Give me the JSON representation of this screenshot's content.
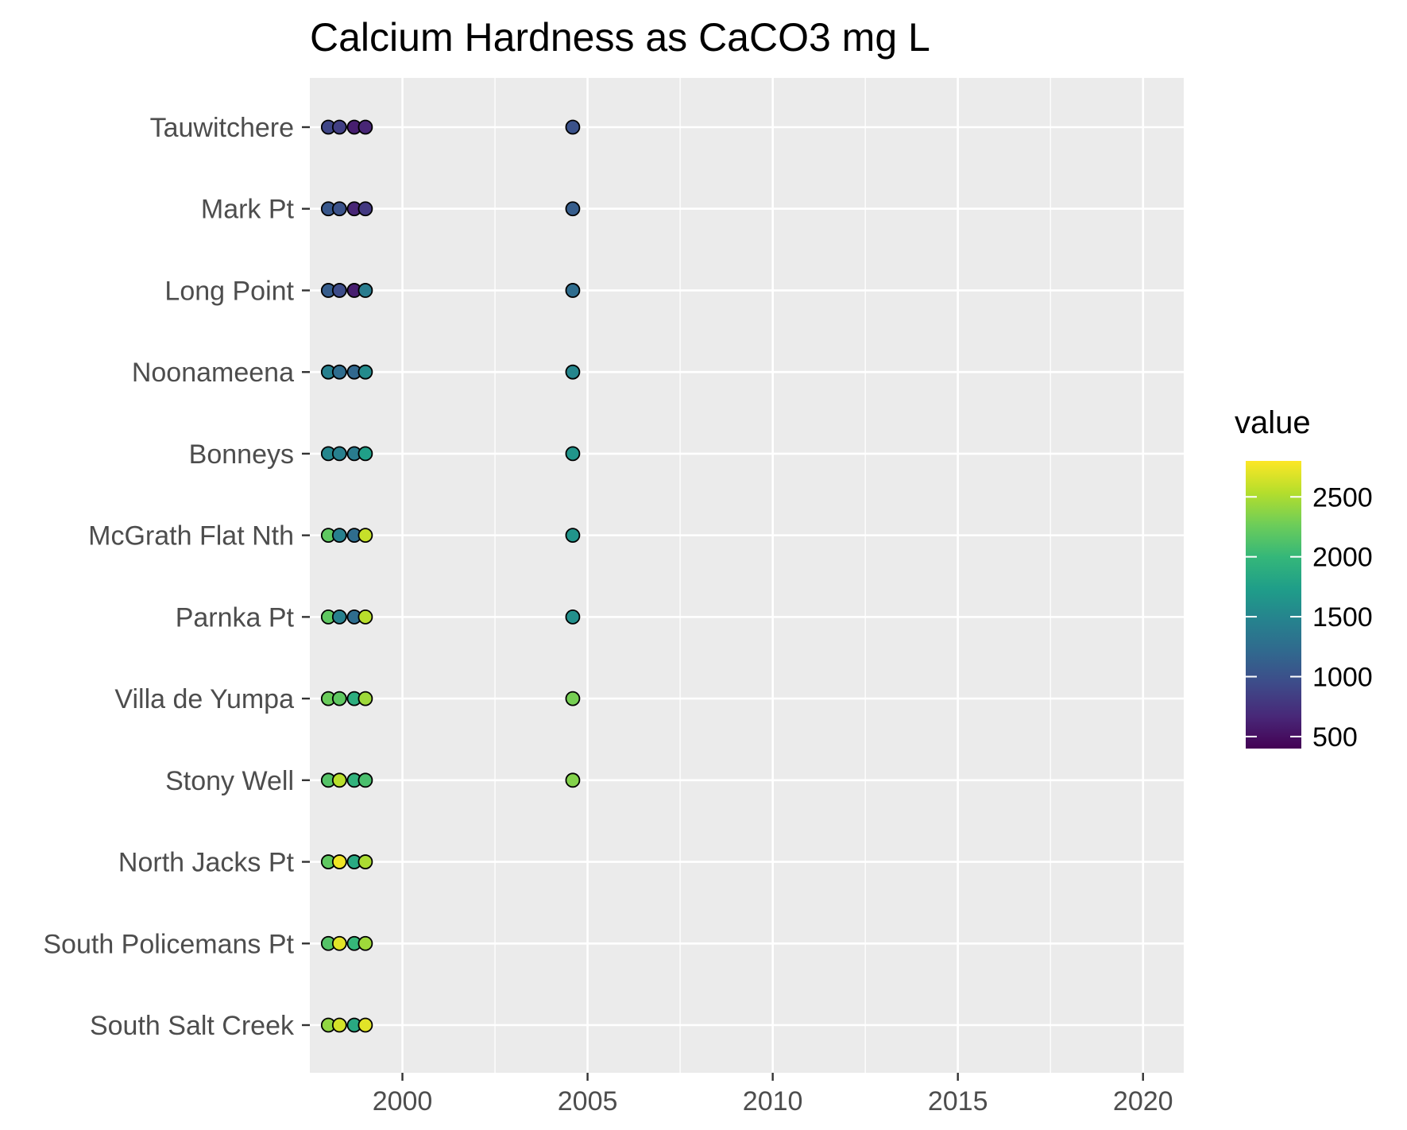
{
  "chart_data": {
    "type": "scatter",
    "title": "Calcium Hardness as CaCO3 mg L",
    "xlabel": "",
    "ylabel": "",
    "x_ticks": [
      2000,
      2005,
      2010,
      2015,
      2020
    ],
    "x_ticks_text": [
      "2000",
      "2005",
      "2010",
      "2015",
      "2020"
    ],
    "xlim": [
      1997.5,
      2021.1
    ],
    "categories": [
      "Tauwitchere",
      "Mark Pt",
      "Long Point",
      "Noonameena",
      "Bonneys",
      "McGrath Flat Nth",
      "Parnka Pt",
      "Villa de Yumpa",
      "Stony Well",
      "North Jacks Pt",
      "South Policemans Pt",
      "South Salt Creek"
    ],
    "grid": true,
    "legend": {
      "title": "value",
      "placement": "right",
      "type": "colorbar",
      "palette": "viridis",
      "range": [
        400,
        2800
      ],
      "ticks": [
        500,
        1000,
        1500,
        2000,
        2500
      ],
      "ticks_text": [
        "500",
        "1000",
        "1500",
        "2000",
        "2500"
      ]
    },
    "colors": {
      "panel_background": "#ebebeb",
      "grid": "#ffffff",
      "point_outline": "#000000"
    },
    "series": [
      {
        "site": "Tauwitchere",
        "x": [
          1998.0,
          1998.3,
          1998.7,
          1999.0,
          2004.6
        ],
        "values": [
          900,
          850,
          600,
          650,
          1000
        ]
      },
      {
        "site": "Mark Pt",
        "x": [
          1998.0,
          1998.3,
          1998.7,
          1999.0,
          2004.6
        ],
        "values": [
          1050,
          1000,
          650,
          800,
          1100
        ]
      },
      {
        "site": "Long Point",
        "x": [
          1998.0,
          1998.3,
          1998.7,
          1999.0,
          2004.6
        ],
        "values": [
          1100,
          950,
          600,
          1400,
          1250
        ]
      },
      {
        "site": "Noonameena",
        "x": [
          1998.0,
          1998.3,
          1998.7,
          1999.0,
          2004.6
        ],
        "values": [
          1450,
          1250,
          1200,
          1550,
          1500
        ]
      },
      {
        "site": "Bonneys",
        "x": [
          1998.0,
          1998.3,
          1998.7,
          1999.0,
          2004.6
        ],
        "values": [
          1500,
          1450,
          1400,
          1750,
          1650
        ]
      },
      {
        "site": "McGrath Flat Nth",
        "x": [
          1998.0,
          1998.3,
          1998.7,
          1999.0,
          2004.6
        ],
        "values": [
          2200,
          1450,
          1250,
          2600,
          1650
        ]
      },
      {
        "site": "Parnka Pt",
        "x": [
          1998.0,
          1998.3,
          1998.7,
          1999.0,
          2004.6
        ],
        "values": [
          2200,
          1450,
          1250,
          2550,
          1600
        ]
      },
      {
        "site": "Villa de Yumpa",
        "x": [
          1998.0,
          1998.3,
          1998.7,
          1999.0,
          2004.6
        ],
        "values": [
          2250,
          2200,
          1900,
          2450,
          2300
        ]
      },
      {
        "site": "Stony Well",
        "x": [
          1998.0,
          1998.3,
          1998.7,
          1999.0,
          2004.6
        ],
        "values": [
          2150,
          2550,
          1950,
          2100,
          2350
        ]
      },
      {
        "site": "North Jacks Pt",
        "x": [
          1998.0,
          1998.3,
          1998.7,
          1999.0
        ],
        "values": [
          2200,
          2750,
          1850,
          2500
        ]
      },
      {
        "site": "South Policemans Pt",
        "x": [
          1998.0,
          1998.3,
          1998.7,
          1999.0
        ],
        "values": [
          2150,
          2700,
          2000,
          2450
        ]
      },
      {
        "site": "South Salt Creek",
        "x": [
          1998.0,
          1998.3,
          1998.7,
          1999.0
        ],
        "values": [
          2400,
          2650,
          1850,
          2700
        ]
      }
    ]
  }
}
